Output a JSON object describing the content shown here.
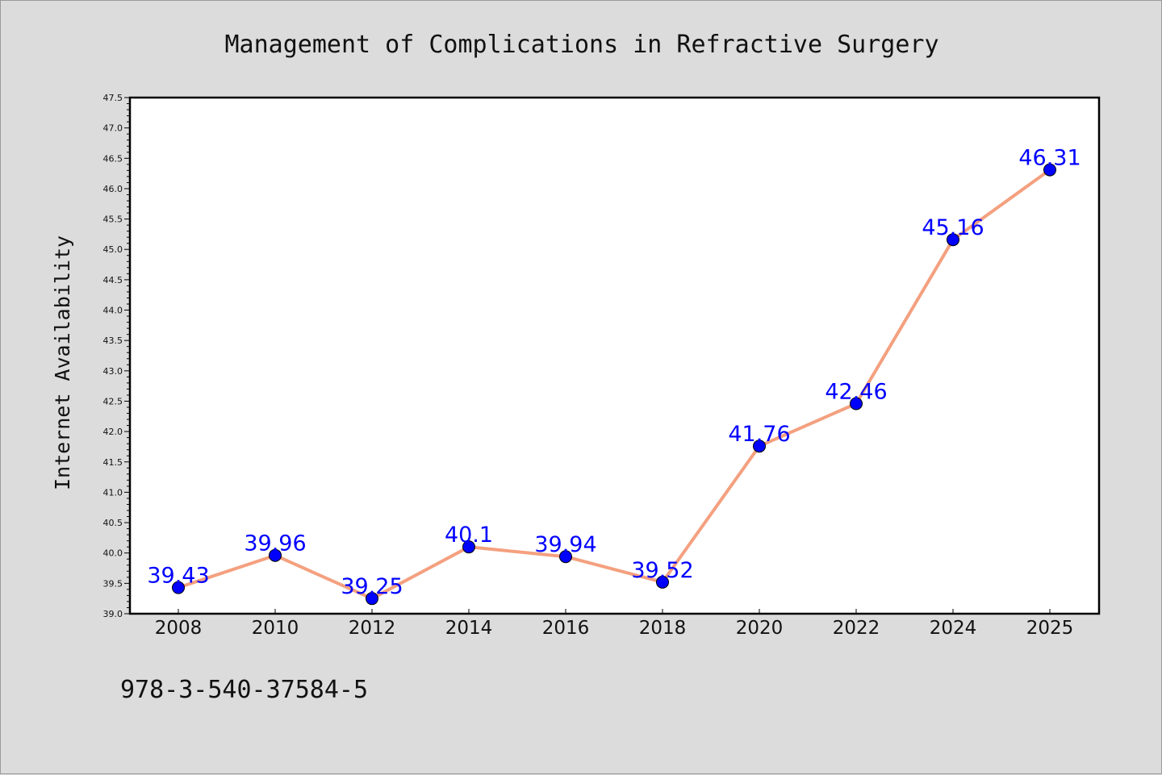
{
  "chart_data": {
    "type": "line",
    "title": "Management of Complications in Refractive Surgery",
    "xlabel": "",
    "ylabel": "Internet Availability",
    "categories": [
      "2008",
      "2010",
      "2012",
      "2014",
      "2016",
      "2018",
      "2020",
      "2022",
      "2024",
      "2025"
    ],
    "series": [
      {
        "values": [
          39.43,
          39.96,
          39.25,
          40.1,
          39.94,
          39.52,
          41.76,
          42.46,
          45.16,
          46.31
        ],
        "labels": [
          "39.43",
          "39.96",
          "39.25",
          "40.1",
          "39.94",
          "39.52",
          "41.76",
          "42.46",
          "45.16",
          "46.31"
        ]
      }
    ],
    "ylim": [
      39.0,
      47.5
    ],
    "yticks": [
      "39.0",
      "39.5",
      "40.0",
      "40.5",
      "41.0",
      "41.5",
      "42.0",
      "42.5",
      "43.0",
      "43.5",
      "44.0",
      "44.5",
      "45.0",
      "45.5",
      "46.0",
      "46.5",
      "47.0",
      "47.5"
    ],
    "grid": false,
    "legend": "none",
    "colors": {
      "line": "#f4a07f",
      "marker": "#0000ff",
      "data_label": "#0000ff",
      "background": "#dcdcdc",
      "plot_background": "#ffffff"
    }
  },
  "footnote": "978-3-540-37584-5"
}
